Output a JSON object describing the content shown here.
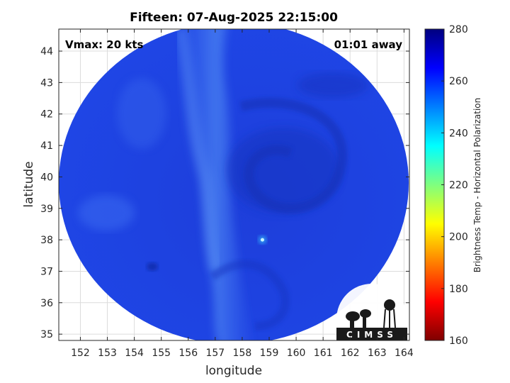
{
  "chart_data": {
    "type": "heatmap",
    "title": "Fifteen: 07-Aug-2025 22:15:00",
    "xlabel": "longitude",
    "ylabel": "latitude",
    "xlim": [
      151.2,
      164.2
    ],
    "ylim": [
      34.8,
      44.7
    ],
    "x_ticks": [
      152,
      153,
      154,
      155,
      156,
      157,
      158,
      159,
      160,
      161,
      162,
      163,
      164
    ],
    "y_ticks": [
      35,
      36,
      37,
      38,
      39,
      40,
      41,
      42,
      43,
      44
    ],
    "grid": true,
    "annotations": {
      "vmax": "Vmax: 20 kts",
      "away": "01:01 away"
    },
    "storm_center": {
      "lon": 158.75,
      "lat": 38.0
    },
    "colorbar": {
      "label": "Brightness Temp - Horizontal Polarization",
      "min": 160,
      "max": 280,
      "ticks": [
        160,
        180,
        200,
        220,
        240,
        260,
        280
      ],
      "colormap": "jet",
      "colors": [
        "#7f0000",
        "#ff0000",
        "#ff7f00",
        "#ffff00",
        "#7fff7f",
        "#00ffff",
        "#007fff",
        "#0000ff",
        "#00007f"
      ]
    },
    "field_value_range": [
      250,
      266
    ]
  },
  "logo": {
    "text": "CIMSS"
  }
}
